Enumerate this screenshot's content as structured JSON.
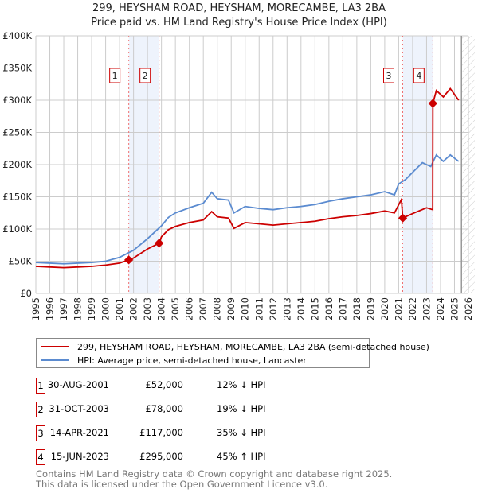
{
  "chart_data": {
    "type": "line",
    "title": "299, HEYSHAM ROAD, HEYSHAM, MORECAMBE, LA3 2BA",
    "subtitle": "Price paid vs. HM Land Registry's House Price Index (HPI)",
    "xlim": [
      1995,
      2026
    ],
    "ylim": [
      0,
      400000
    ],
    "x_ticks": [
      "1995",
      "1996",
      "1997",
      "1998",
      "1999",
      "2000",
      "2001",
      "2002",
      "2003",
      "2004",
      "2005",
      "2006",
      "2007",
      "2008",
      "2009",
      "2010",
      "2011",
      "2012",
      "2013",
      "2014",
      "2015",
      "2016",
      "2017",
      "2018",
      "2019",
      "2020",
      "2021",
      "2022",
      "2023",
      "2024",
      "2025",
      "2026"
    ],
    "y_ticks": [
      {
        "v": 0,
        "label": "£0"
      },
      {
        "v": 50000,
        "label": "£50K"
      },
      {
        "v": 100000,
        "label": "£100K"
      },
      {
        "v": 150000,
        "label": "£150K"
      },
      {
        "v": 200000,
        "label": "£200K"
      },
      {
        "v": 250000,
        "label": "£250K"
      },
      {
        "v": 300000,
        "label": "£300K"
      },
      {
        "v": 350000,
        "label": "£350K"
      },
      {
        "v": 400000,
        "label": "£400K"
      }
    ],
    "grid": true,
    "series": [
      {
        "name": "299, HEYSHAM ROAD, HEYSHAM, MORECAMBE, LA3 2BA (semi-detached house)",
        "color": "#cc0000",
        "x": [
          1995,
          1996,
          1997,
          1998,
          1999,
          2000,
          2001,
          2001.66,
          2002,
          2003,
          2003.83,
          2004,
          2004.5,
          2005,
          2006,
          2007,
          2007.6,
          2008,
          2008.8,
          2009.2,
          2010,
          2011,
          2012,
          2013,
          2014,
          2015,
          2016,
          2017,
          2018,
          2019,
          2020,
          2020.7,
          2021.2,
          2021.29,
          2022,
          2023,
          2023.44,
          2023.45,
          2023.7,
          2024.2,
          2024.7,
          2025.3
        ],
        "y": [
          42000,
          41000,
          40000,
          41000,
          42000,
          44000,
          47000,
          52000,
          55000,
          69000,
          78000,
          88000,
          99000,
          104000,
          110000,
          114000,
          127000,
          119000,
          117000,
          101000,
          110000,
          108000,
          106000,
          108000,
          110000,
          112000,
          116000,
          119000,
          121000,
          124000,
          128000,
          125000,
          146000,
          117000,
          124000,
          133000,
          130000,
          295000,
          315000,
          305000,
          318000,
          300000
        ]
      },
      {
        "name": "HPI: Average price, semi-detached house, Lancaster",
        "color": "#5b8bd0",
        "x": [
          1995,
          1996,
          1997,
          1998,
          1999,
          2000,
          2001,
          2002,
          2003,
          2004,
          2004.5,
          2005,
          2006,
          2007,
          2007.6,
          2008,
          2008.8,
          2009.2,
          2010,
          2011,
          2012,
          2013,
          2014,
          2015,
          2016,
          2017,
          2018,
          2019,
          2020,
          2020.7,
          2021,
          2021.5,
          2022,
          2022.7,
          2023.3,
          2023.7,
          2024.2,
          2024.7,
          2025.3
        ],
        "y": [
          48000,
          47000,
          46000,
          47000,
          48000,
          50000,
          56000,
          67000,
          85000,
          105000,
          118000,
          125000,
          133000,
          140000,
          157000,
          147000,
          145000,
          125000,
          135000,
          132000,
          130000,
          133000,
          135000,
          138000,
          143000,
          147000,
          150000,
          153000,
          158000,
          153000,
          170000,
          177000,
          188000,
          203000,
          197000,
          215000,
          205000,
          215000,
          205000
        ]
      }
    ],
    "sales": [
      {
        "id": "1",
        "x": 2001.66,
        "y": 52000
      },
      {
        "id": "2",
        "x": 2003.83,
        "y": 78000
      },
      {
        "id": "3",
        "x": 2021.29,
        "y": 117000
      },
      {
        "id": "4",
        "x": 2023.45,
        "y": 295000
      }
    ],
    "shaded_ranges": [
      [
        2001.66,
        2003.83
      ],
      [
        2021.29,
        2023.45
      ]
    ],
    "hatched_from": 2025.5
  },
  "legend": [
    "299, HEYSHAM ROAD, HEYSHAM, MORECAMBE, LA3 2BA (semi-detached house)",
    "HPI: Average price, semi-detached house, Lancaster"
  ],
  "table": [
    {
      "num": "1",
      "date": "30-AUG-2001",
      "price": "£52,000",
      "hpi": "12% ↓ HPI"
    },
    {
      "num": "2",
      "date": "31-OCT-2003",
      "price": "£78,000",
      "hpi": "19% ↓ HPI"
    },
    {
      "num": "3",
      "date": "14-APR-2021",
      "price": "£117,000",
      "hpi": "35% ↓ HPI"
    },
    {
      "num": "4",
      "date": "15-JUN-2023",
      "price": "£295,000",
      "hpi": "45% ↑ HPI"
    }
  ],
  "footer": [
    "Contains HM Land Registry data © Crown copyright and database right 2025.",
    "This data is licensed under the Open Government Licence v3.0."
  ]
}
